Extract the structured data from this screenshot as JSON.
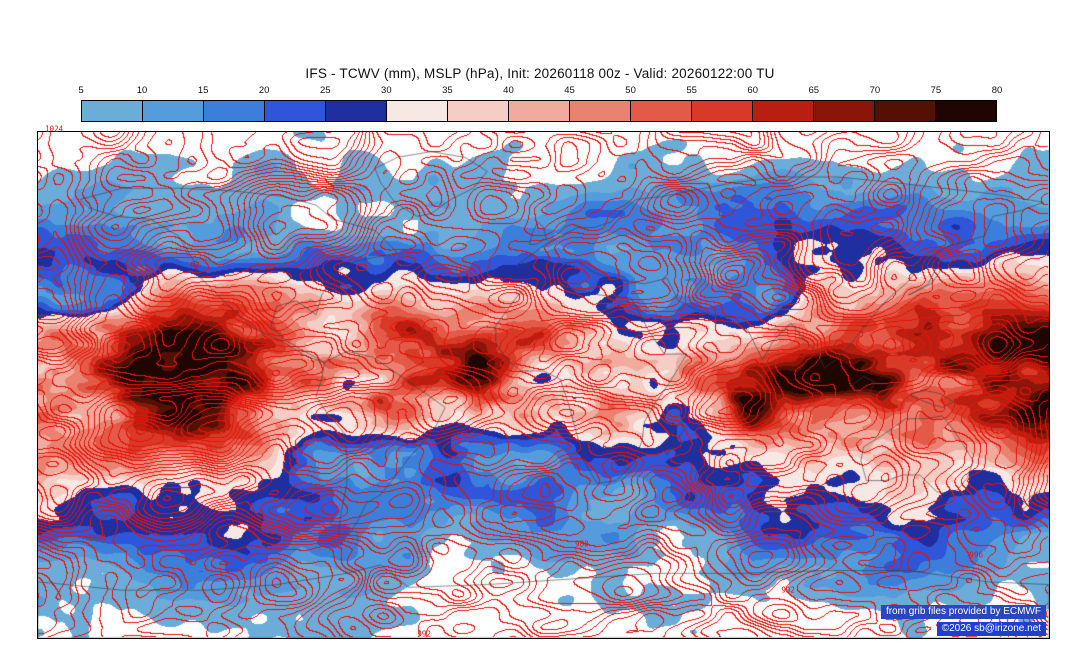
{
  "header": {
    "title": "IFS - TCWV (mm), MSLP (hPa), Init: 20260118 00z - Valid: 20260122:00 TU"
  },
  "chart_data": {
    "type": "heatmap",
    "title": "IFS - TCWV (mm), MSLP (hPa), Init: 20260118 00z - Valid: 20260122:00 TU",
    "model": "IFS",
    "shaded_field": "TCWV (mm)",
    "contour_field": "MSLP (hPa)",
    "init_time": "20260118 00z",
    "valid_time": "20260122:00 TU",
    "colorbar": {
      "units": "mm",
      "ticks": [
        5,
        10,
        15,
        20,
        25,
        30,
        35,
        40,
        45,
        50,
        55,
        60,
        65,
        70,
        75,
        80
      ],
      "colors": [
        "#6badd8",
        "#559cdc",
        "#3c7fda",
        "#2f55d9",
        "#1f2fa0",
        "#f8e8e4",
        "#f5cdc4",
        "#f0ab9e",
        "#ea8272",
        "#e45a48",
        "#d93a28",
        "#b81f10",
        "#8c150a",
        "#541005",
        "#200603"
      ]
    },
    "contour_labels": [
      {
        "text": "1024",
        "x_pct": 1.6,
        "y_pct": -0.6
      },
      {
        "text": "1008",
        "x_pct": 5.8,
        "y_pct": 80.2
      },
      {
        "text": "992",
        "x_pct": 38.2,
        "y_pct": 99.2
      },
      {
        "text": "980",
        "x_pct": 53.8,
        "y_pct": 81.5
      },
      {
        "text": "992",
        "x_pct": 74.2,
        "y_pct": 90.6
      },
      {
        "text": "996",
        "x_pct": 92.8,
        "y_pct": 83.6
      }
    ]
  },
  "attribution": {
    "line1": "from grib files provided by ECMWF",
    "line2": "©2026 sb@irizone.net"
  },
  "colors": {
    "mslp_contour": "#e8140a",
    "coastline": "#3c3c3c",
    "map_border": "#000000",
    "background": "#ffffff"
  }
}
